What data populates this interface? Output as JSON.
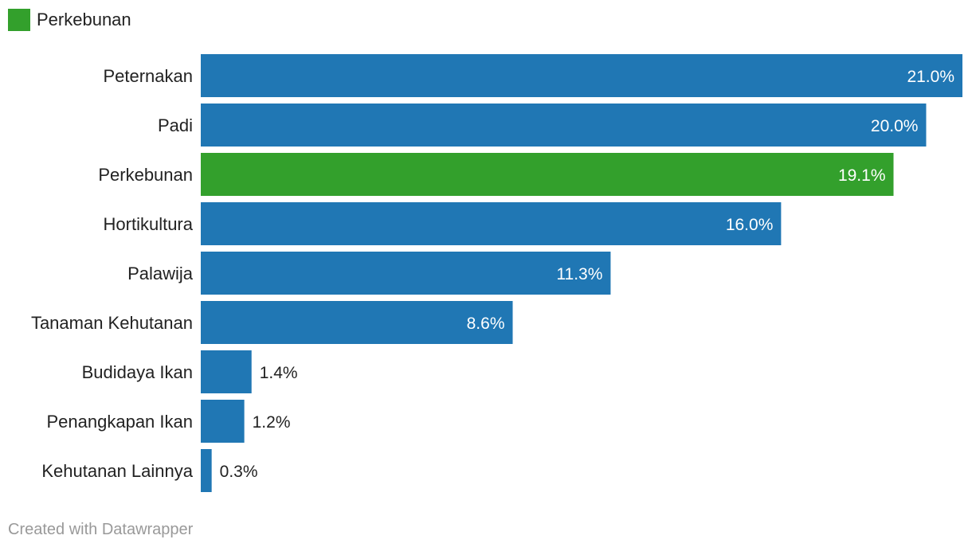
{
  "legend": {
    "label": "Perkebunan",
    "color": "#33a02c"
  },
  "credit": "Created with Datawrapper",
  "colors": {
    "default": "#2077b4",
    "highlight": "#33a02c"
  },
  "chart_data": {
    "type": "bar",
    "orientation": "horizontal",
    "title": "",
    "xlabel": "",
    "ylabel": "",
    "grid": false,
    "legend_position": "top-left",
    "xlim": [
      0,
      21
    ],
    "categories": [
      "Peternakan",
      "Padi",
      "Perkebunan",
      "Hortikultura",
      "Palawija",
      "Tanaman Kehutanan",
      "Budidaya Ikan",
      "Penangkapan Ikan",
      "Kehutanan Lainnya"
    ],
    "values": [
      21.0,
      20.0,
      19.1,
      16.0,
      11.3,
      8.6,
      1.4,
      1.2,
      0.3
    ],
    "value_labels": [
      "21.0%",
      "20.0%",
      "19.1%",
      "16.0%",
      "11.3%",
      "8.6%",
      "1.4%",
      "1.2%",
      "0.3%"
    ],
    "highlight": "Perkebunan"
  }
}
